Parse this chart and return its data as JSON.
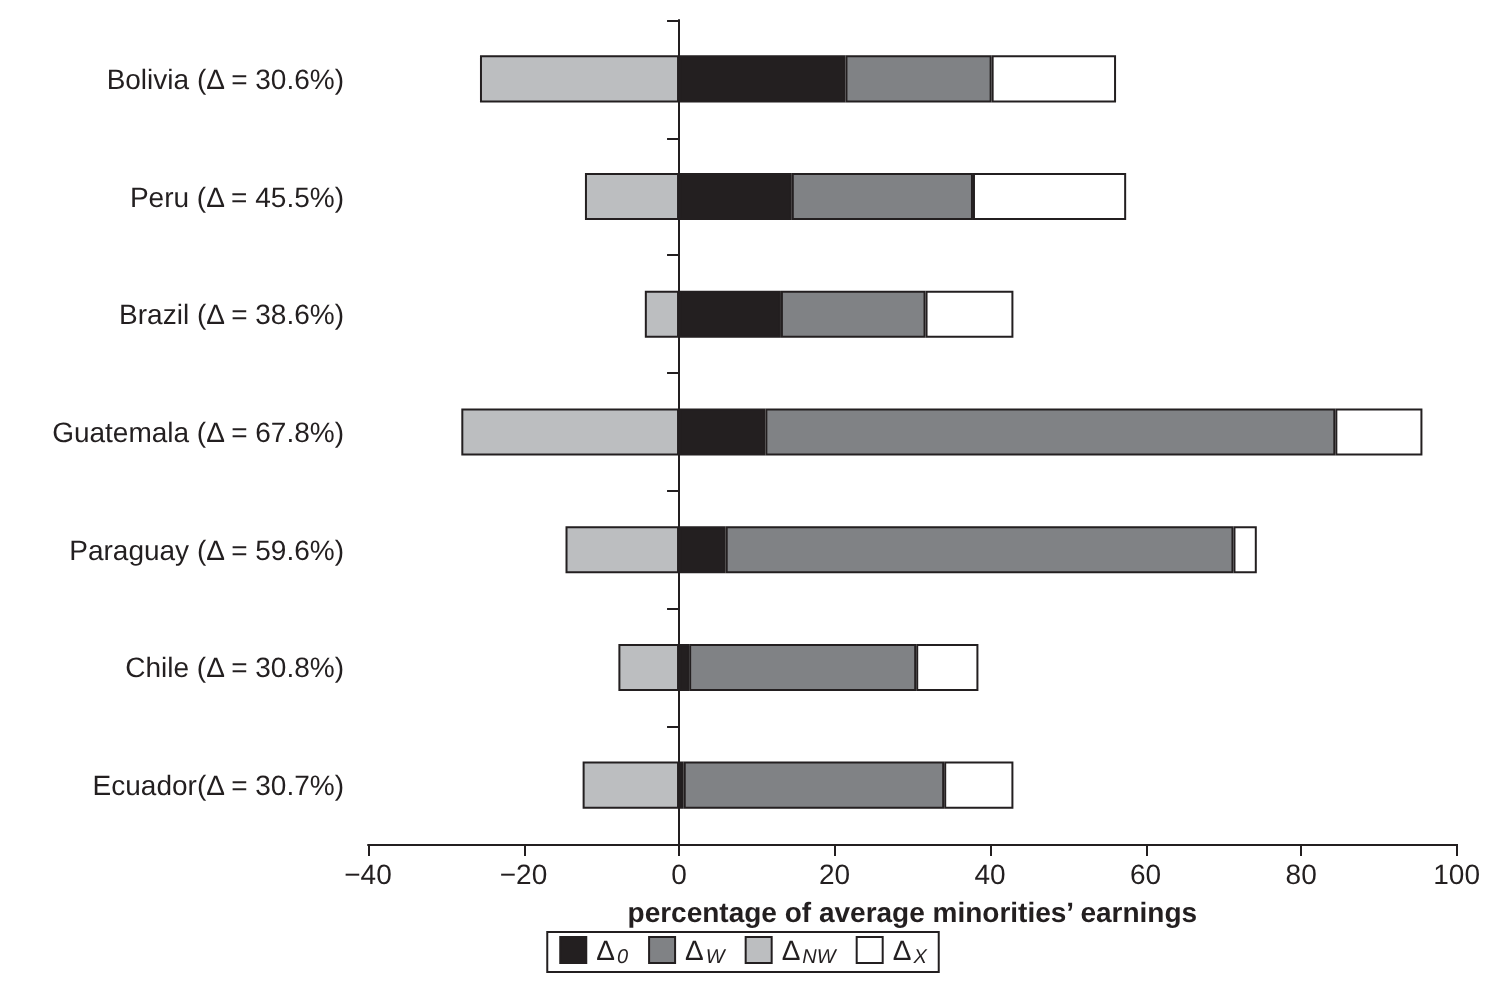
{
  "chart_data": {
    "type": "bar",
    "orientation": "horizontal",
    "stacked": true,
    "categories": [
      "Bolivia (Δ = 30.6%)",
      "Peru (Δ = 45.5%)",
      "Brazil (Δ = 38.6%)",
      "Guatemala (Δ = 67.8%)",
      "Paraguay (Δ = 59.6%)",
      "Chile (Δ = 30.8%)",
      "Ecuador(Δ = 30.7%)"
    ],
    "series": [
      {
        "name": "Δ$_{0}$",
        "color": "#231f20",
        "values": [
          21.4,
          14.5,
          13.1,
          11.1,
          6.0,
          1.3,
          0.6
        ]
      },
      {
        "name": "Δ$_{W}$",
        "color": "#808285",
        "values": [
          18.8,
          23.3,
          18.6,
          73.3,
          65.3,
          29.2,
          33.5
        ]
      },
      {
        "name": "Δ$_{NW}$",
        "color": "#bcbec0",
        "values": [
          -25.6,
          -12.1,
          -4.4,
          -28.0,
          -14.6,
          -7.8,
          -12.4
        ]
      },
      {
        "name": "Δ$_{X}$",
        "color": "#ffffff",
        "values": [
          16.0,
          19.7,
          11.3,
          11.2,
          3.0,
          8.0,
          8.9
        ]
      }
    ],
    "xlabel": "percentage of average minorities’ earnings",
    "xlim": [
      -40,
      100
    ],
    "xticks": [
      -40,
      -20,
      0,
      20,
      40,
      60,
      80,
      100
    ],
    "ref_lines": [
      {
        "axis": "x",
        "value": 0,
        "color": "#231f20"
      }
    ],
    "grid": false,
    "legend": "bottom"
  }
}
